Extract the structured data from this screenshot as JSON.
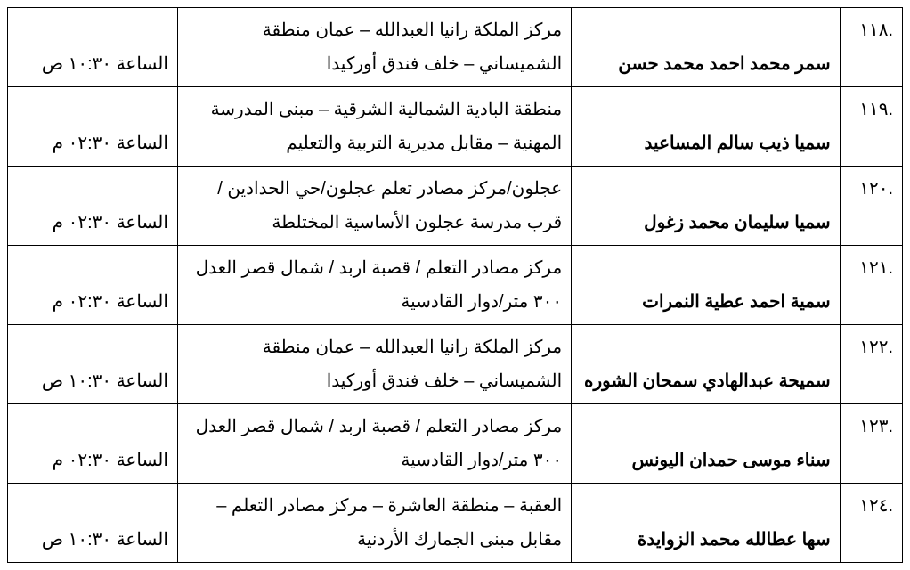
{
  "table": {
    "text_color": "#000000",
    "border_color": "#000000",
    "background_color": "#ffffff",
    "font_size_pt": 15,
    "line_height": 1.9,
    "column_widths_pct": [
      7,
      30,
      44,
      19
    ],
    "columns": [
      "index",
      "name",
      "location",
      "time"
    ],
    "rows": [
      {
        "index": ".١١٨",
        "name": "سمر محمد احمد محمد حسن",
        "location": "مركز الملكة رانيا العبدالله – عمان منطقة الشميساني – خلف فندق أوركيدا",
        "time": "الساعة ١٠:٣٠ ص"
      },
      {
        "index": ".١١٩",
        "name": "سميا ذيب سالم المساعيد",
        "location": "منطقة البادية الشمالية الشرقية – مبنى المدرسة المهنية – مقابل مديرية التربية والتعليم",
        "time": "الساعة ٠٢:٣٠ م"
      },
      {
        "index": ".١٢٠",
        "name": "سميا سليمان محمد زغول",
        "location": "عجلون/مركز مصادر تعلم عجلون/حي الحدادين / قرب مدرسة عجلون الأساسية المختلطة",
        "time": "الساعة ٠٢:٣٠ م"
      },
      {
        "index": ".١٢١",
        "name": "سمية احمد عطية النمرات",
        "location": "مركز مصادر التعلم / قصبة  اربد /  شمال قصر العدل ٣٠٠ متر/دوار القادسية",
        "time": "الساعة ٠٢:٣٠ م"
      },
      {
        "index": ".١٢٢",
        "name": "سميحة عبدالهادي سمحان الشوره",
        "location": "مركز الملكة رانيا العبدالله – عمان منطقة الشميساني – خلف فندق أوركيدا",
        "time": "الساعة ١٠:٣٠ ص"
      },
      {
        "index": ".١٢٣",
        "name": "سناء موسى حمدان اليونس",
        "location": "مركز مصادر التعلم / قصبة  اربد /  شمال قصر العدل ٣٠٠ متر/دوار القادسية",
        "time": "الساعة ٠٢:٣٠ م"
      },
      {
        "index": ".١٢٤",
        "name": "سها عطالله محمد الزوايدة",
        "location": "العقبة – منطقة العاشرة – مركز مصادر التعلم – مقابل مبنى الجمارك الأردنية",
        "time": "الساعة ١٠:٣٠ ص"
      }
    ]
  }
}
